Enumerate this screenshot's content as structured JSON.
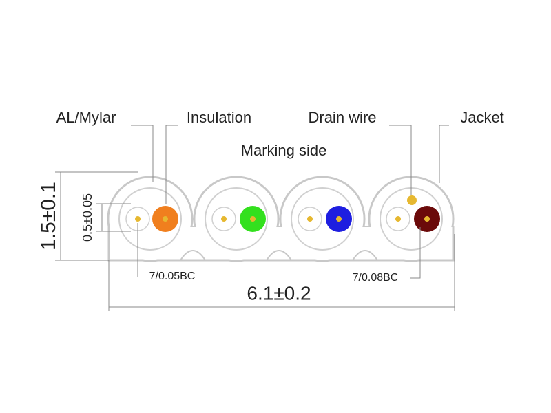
{
  "callouts": {
    "al_mylar": "AL/Mylar",
    "insulation": "Insulation",
    "drain_wire": "Drain wire",
    "jacket": "Jacket",
    "marking_side": "Marking side"
  },
  "dimensions": {
    "height": "1.5±0.1",
    "conductor": "0.5±0.05",
    "width": "6.1±0.2"
  },
  "conductors": {
    "signal": "7/0.05BC",
    "drain": "7/0.08BC"
  }
}
